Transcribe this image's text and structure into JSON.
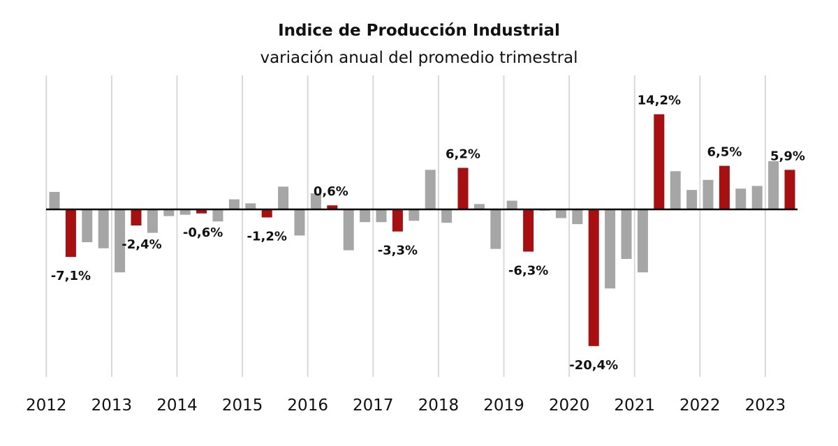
{
  "chart_data": {
    "type": "bar",
    "title": "Indice de Producción Industrial",
    "subtitle": "variación anual del promedio trimestral",
    "xlabel": "",
    "ylabel": "",
    "ylim": [
      -25,
      20
    ],
    "grid": "vertical",
    "legend": "none",
    "colors": {
      "highlight": "#a80f10",
      "regular": "#a6a6a6",
      "zero_line": "#000000",
      "grid": "#d9d9d9"
    },
    "year_labels": [
      "2012",
      "2013",
      "2014",
      "2015",
      "2016",
      "2017",
      "2018",
      "2019",
      "2020",
      "2021",
      "2022",
      "2023"
    ],
    "values": [
      2.6,
      -7.1,
      -4.9,
      -5.8,
      -9.4,
      -2.4,
      -3.5,
      -1.0,
      -0.8,
      -0.6,
      -1.8,
      1.5,
      0.9,
      -1.2,
      3.4,
      -3.9,
      2.4,
      0.6,
      -6.1,
      -1.9,
      -1.9,
      -3.3,
      -1.7,
      5.9,
      -2.0,
      6.2,
      0.8,
      -5.9,
      1.3,
      -6.3,
      -0.2,
      -1.3,
      -2.2,
      -20.4,
      -11.8,
      -7.4,
      -9.4,
      14.2,
      5.7,
      2.9,
      4.4,
      6.5,
      3.1,
      3.5,
      7.2,
      5.9
    ],
    "highlight_index": [
      1,
      5,
      9,
      13,
      17,
      21,
      25,
      29,
      33,
      37,
      41,
      45
    ],
    "data_labels": [
      {
        "index": 1,
        "text": "-7,1%"
      },
      {
        "index": 5,
        "text": "-2,4%"
      },
      {
        "index": 9,
        "text": "-0,6%"
      },
      {
        "index": 13,
        "text": "-1,2%"
      },
      {
        "index": 17,
        "text": "0,6%"
      },
      {
        "index": 21,
        "text": "-3,3%"
      },
      {
        "index": 25,
        "text": "6,2%"
      },
      {
        "index": 29,
        "text": "-6,3%"
      },
      {
        "index": 33,
        "text": "-20,4%"
      },
      {
        "index": 37,
        "text": "14,2%"
      },
      {
        "index": 41,
        "text": "6,5%"
      },
      {
        "index": 45,
        "text": "5,9%"
      }
    ]
  }
}
